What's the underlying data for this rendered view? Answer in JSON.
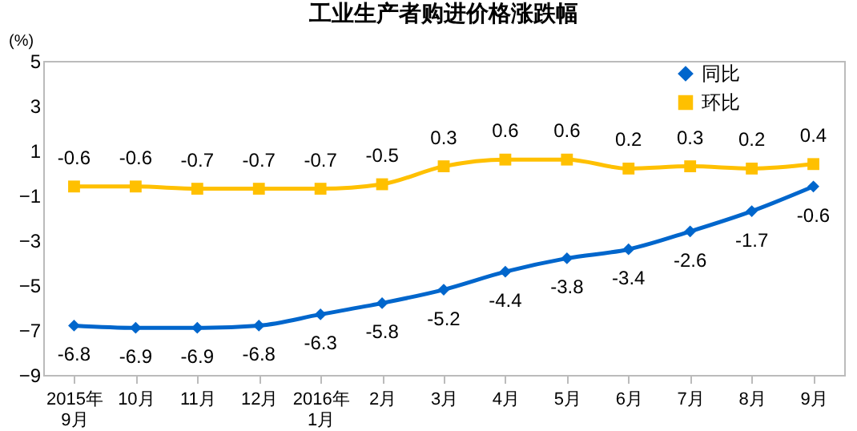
{
  "chart_data": {
    "type": "line",
    "title": "工业生产者购进价格涨跌幅",
    "ylabel": "(%)",
    "categories": [
      "2015年\n9月",
      "10月",
      "11月",
      "12月",
      "2016年\n1月",
      "2月",
      "3月",
      "4月",
      "5月",
      "6月",
      "7月",
      "8月",
      "9月"
    ],
    "series": [
      {
        "name": "同比",
        "color": "#0066cc",
        "marker": "diamond",
        "values": [
          -6.8,
          -6.9,
          -6.9,
          -6.8,
          -6.3,
          -5.8,
          -5.2,
          -4.4,
          -3.8,
          -3.4,
          -2.6,
          -1.7,
          -0.6
        ]
      },
      {
        "name": "环比",
        "color": "#ffc000",
        "marker": "square",
        "values": [
          -0.6,
          -0.6,
          -0.7,
          -0.7,
          -0.7,
          -0.5,
          0.3,
          0.6,
          0.6,
          0.2,
          0.3,
          0.2,
          0.4
        ]
      }
    ],
    "ylim": [
      -9,
      5
    ],
    "yticks": [
      -9,
      -7,
      -5,
      -3,
      -1,
      1,
      3,
      5
    ],
    "grid": false,
    "legend": "top right",
    "data_labels": true,
    "line_style": "solid"
  }
}
